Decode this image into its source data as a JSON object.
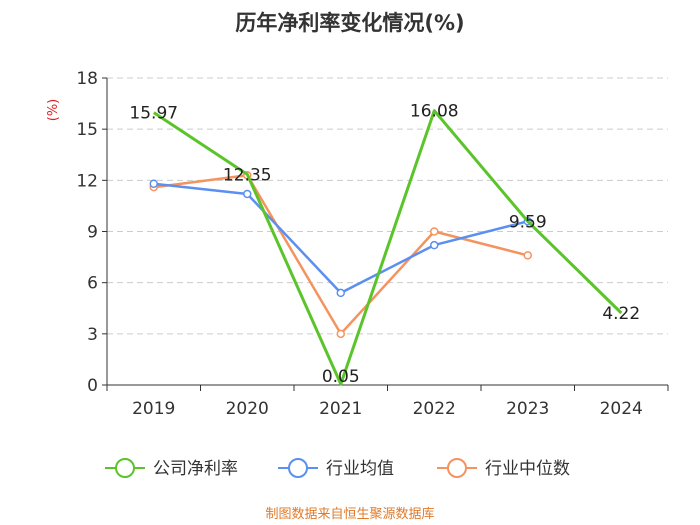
{
  "chart_data": {
    "type": "line",
    "title": "历年净利率变化情况(%)",
    "ylabel": "(%)",
    "xlabel": "",
    "ylim": [
      0,
      18
    ],
    "yticks": [
      0,
      3,
      6,
      9,
      12,
      15,
      18
    ],
    "categories": [
      "2019",
      "2020",
      "2021",
      "2022",
      "2023",
      "2024"
    ],
    "series": [
      {
        "name": "公司净利率",
        "color": "#5ac42a",
        "values": [
          15.97,
          12.35,
          0.05,
          16.08,
          9.59,
          4.22
        ],
        "labels": [
          "15.97",
          "12.35",
          "0.05",
          "16.08",
          "9.59",
          "4.22"
        ]
      },
      {
        "name": "行业均值",
        "color": "#5b8ff0",
        "values": [
          11.8,
          11.2,
          5.4,
          8.2,
          9.6,
          null
        ]
      },
      {
        "name": "行业中位数",
        "color": "#f5935e",
        "values": [
          11.6,
          12.3,
          3.0,
          9.0,
          7.6,
          null
        ]
      }
    ],
    "grid": true,
    "legend_position": "bottom"
  },
  "source": "制图数据来自恒生聚源数据库"
}
